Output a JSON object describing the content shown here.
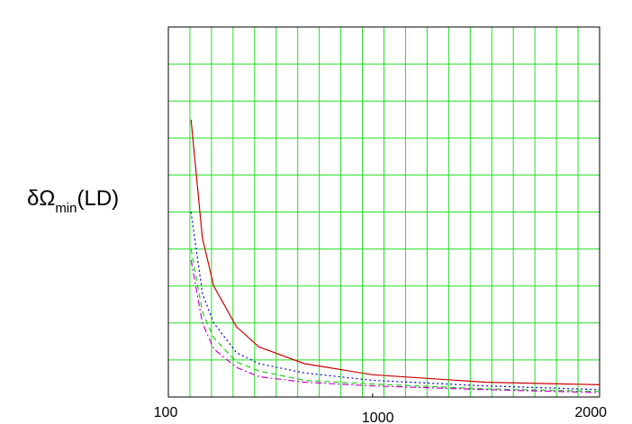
{
  "chart_data": {
    "type": "line",
    "ylabel": "δΩ",
    "ylabel_sub": "min",
    "ylabel_suffix": "(LD)",
    "x": [
      200,
      250,
      300,
      400,
      500,
      700,
      1000,
      1500,
      2000
    ],
    "xlim": [
      100,
      2000
    ],
    "xticks": [
      100,
      1000,
      2000
    ],
    "ylim": [
      0,
      10
    ],
    "grid": true,
    "grid_color": "#22dd22",
    "series": [
      {
        "color": "#cc0000",
        "style": "solid",
        "values": [
          7.5,
          4.3,
          3.0,
          1.9,
          1.35,
          0.9,
          0.6,
          0.4,
          0.33
        ]
      },
      {
        "color": "#0000cc",
        "style": "dotted",
        "values": [
          5.0,
          2.8,
          2.0,
          1.2,
          0.9,
          0.65,
          0.45,
          0.3,
          0.2
        ]
      },
      {
        "color": "#22cc22",
        "style": "dashed",
        "values": [
          4.0,
          2.3,
          1.6,
          0.95,
          0.7,
          0.45,
          0.35,
          0.22,
          0.15
        ]
      },
      {
        "color": "#cc00cc",
        "style": "dashdot",
        "values": [
          3.7,
          2.0,
          1.3,
          0.8,
          0.55,
          0.4,
          0.3,
          0.2,
          0.12
        ]
      }
    ]
  }
}
